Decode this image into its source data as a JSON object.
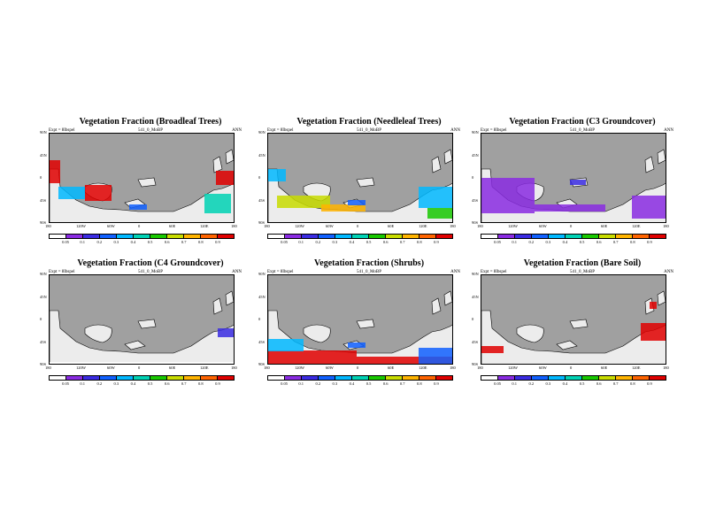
{
  "panels": [
    {
      "title": "Vegetation Fraction (Broadleaf Trees)",
      "expt": "Expt = 8Ibspel",
      "run": "541_0_MoBP",
      "season": "ANN"
    },
    {
      "title": "Vegetation Fraction (Needleleaf Trees)",
      "expt": "Expt = 8Ibspel",
      "run": "541_0_MoBP",
      "season": "ANN"
    },
    {
      "title": "Vegetation Fraction (C3 Groundcover)",
      "expt": "Expt = 8Ibspel",
      "run": "541_0_MoBP",
      "season": "ANN"
    },
    {
      "title": "Vegetation Fraction (C4 Groundcover)",
      "expt": "Expt = 8Ibspel",
      "run": "541_0_MoBP",
      "season": "ANN"
    },
    {
      "title": "Vegetation Fraction (Shrubs)",
      "expt": "Expt = 8Ibspel",
      "run": "541_0_MoBP",
      "season": "ANN"
    },
    {
      "title": "Vegetation Fraction (Bare Soil)",
      "expt": "Expt = 8Ibspel",
      "run": "541_0_MoBP",
      "season": "ANN"
    }
  ],
  "axes": {
    "lat_ticks": [
      "90N",
      "45N",
      "0",
      "45S",
      "90S"
    ],
    "lon_ticks": [
      "180",
      "120W",
      "60W",
      "0",
      "60E",
      "120E",
      "180"
    ]
  },
  "colorbar": {
    "labels": [
      "0.05",
      "0.1",
      "0.2",
      "0.3",
      "0.4",
      "0.5",
      "0.6",
      "0.7",
      "0.8",
      "0.9"
    ],
    "colors": [
      "#ffffff",
      "#8a2be2",
      "#3a2be2",
      "#1060ff",
      "#00b8ff",
      "#00d2b4",
      "#18c800",
      "#c8dc00",
      "#ffb400",
      "#ff6400",
      "#e00000"
    ]
  },
  "colors": {
    "land": "#a0a0a0",
    "ocean_low": "#ececec"
  }
}
